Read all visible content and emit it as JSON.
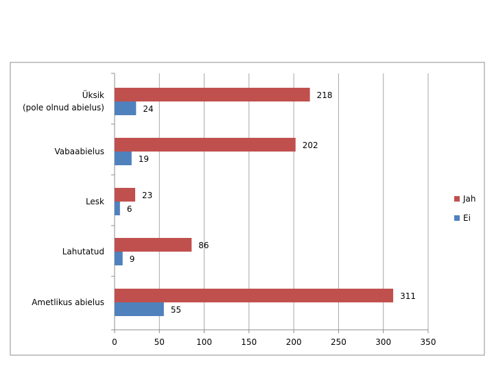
{
  "chart_data": {
    "type": "bar",
    "orientation": "horizontal",
    "categories": [
      [
        "Üksik",
        "(pole olnud abielus)"
      ],
      [
        "Vabaabielus"
      ],
      [
        "Lesk"
      ],
      [
        "Lahutatud"
      ],
      [
        "Ametlikus abielus"
      ]
    ],
    "series": [
      {
        "name": "Jah",
        "color": "#c0504d",
        "values": [
          218,
          202,
          23,
          86,
          311
        ]
      },
      {
        "name": "Ei",
        "color": "#4f81bd",
        "values": [
          24,
          19,
          6,
          9,
          55
        ]
      }
    ],
    "xlim": [
      0,
      350
    ],
    "xticks": [
      "0",
      "50",
      "100",
      "150",
      "200",
      "250",
      "300",
      "350"
    ],
    "grid": "vertical",
    "legend": "right"
  }
}
